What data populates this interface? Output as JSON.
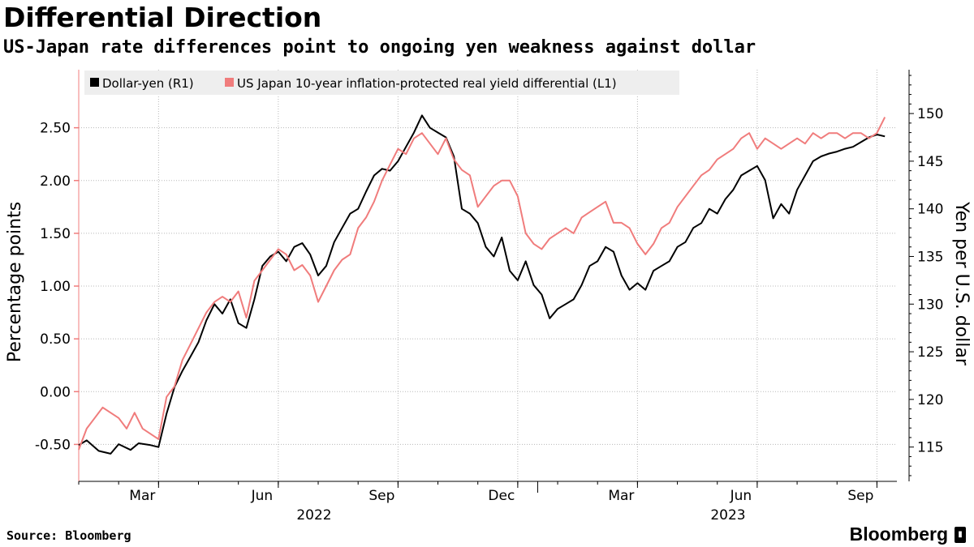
{
  "header": {
    "title": "Differential Direction",
    "subtitle": "US-Japan rate differences point to ongoing yen weakness against dollar"
  },
  "footer": {
    "source": "Source: Bloomberg",
    "brand": "Bloomberg",
    "brand_icon": "bloomberg-terminal-icon"
  },
  "colors": {
    "dollar_yen": "#000000",
    "real_yield": "#f07c7c",
    "legend_bg": "#eeeeee",
    "grid": "#b8b8b8"
  },
  "chart_data": {
    "type": "line",
    "x_tick_labels": [
      "Mar",
      "Jun",
      "Sep",
      "Dec",
      "Mar",
      "Jun",
      "Sep"
    ],
    "x_tick_months": [
      2,
      5,
      8,
      11,
      14,
      17,
      20
    ],
    "x_year_labels": [
      "2022",
      "2023"
    ],
    "x_range_months": [
      0,
      20.5
    ],
    "y_left": {
      "label": "Percentage points",
      "ticks": [
        "-0.50",
        "0.00",
        "0.50",
        "1.00",
        "1.50",
        "2.00",
        "2.50"
      ],
      "range": [
        -0.85,
        3.05
      ]
    },
    "y_right": {
      "label": "Yen per U.S. dollar",
      "ticks": [
        "115",
        "120",
        "125",
        "130",
        "135",
        "140",
        "145",
        "150"
      ],
      "range": [
        111.4,
        154.6
      ]
    },
    "series": [
      {
        "name": "Dollar-yen (R1)",
        "axis": "right",
        "color": "#000000",
        "points": [
          [
            0.0,
            115.2
          ],
          [
            0.2,
            115.7
          ],
          [
            0.5,
            114.6
          ],
          [
            0.8,
            114.3
          ],
          [
            1.0,
            115.3
          ],
          [
            1.3,
            114.7
          ],
          [
            1.5,
            115.4
          ],
          [
            1.8,
            115.2
          ],
          [
            2.0,
            115.0
          ],
          [
            2.2,
            118.5
          ],
          [
            2.4,
            121.3
          ],
          [
            2.6,
            123.0
          ],
          [
            2.8,
            124.5
          ],
          [
            3.0,
            126.0
          ],
          [
            3.2,
            128.3
          ],
          [
            3.4,
            130.0
          ],
          [
            3.6,
            129.0
          ],
          [
            3.8,
            130.5
          ],
          [
            4.0,
            128.0
          ],
          [
            4.2,
            127.5
          ],
          [
            4.4,
            130.5
          ],
          [
            4.6,
            134.0
          ],
          [
            4.8,
            135.0
          ],
          [
            5.0,
            135.5
          ],
          [
            5.2,
            134.5
          ],
          [
            5.4,
            136.0
          ],
          [
            5.6,
            136.4
          ],
          [
            5.8,
            135.2
          ],
          [
            6.0,
            133.0
          ],
          [
            6.2,
            134.0
          ],
          [
            6.4,
            136.5
          ],
          [
            6.6,
            138.0
          ],
          [
            6.8,
            139.5
          ],
          [
            7.0,
            140.0
          ],
          [
            7.2,
            141.8
          ],
          [
            7.4,
            143.5
          ],
          [
            7.6,
            144.2
          ],
          [
            7.8,
            144.0
          ],
          [
            8.0,
            145.0
          ],
          [
            8.2,
            146.5
          ],
          [
            8.4,
            148.0
          ],
          [
            8.6,
            149.8
          ],
          [
            8.8,
            148.5
          ],
          [
            9.0,
            148.0
          ],
          [
            9.2,
            147.5
          ],
          [
            9.4,
            145.5
          ],
          [
            9.6,
            140.0
          ],
          [
            9.8,
            139.5
          ],
          [
            10.0,
            138.5
          ],
          [
            10.2,
            136.0
          ],
          [
            10.4,
            135.0
          ],
          [
            10.6,
            137.0
          ],
          [
            10.8,
            133.5
          ],
          [
            11.0,
            132.5
          ],
          [
            11.2,
            134.5
          ],
          [
            11.4,
            132.0
          ],
          [
            11.6,
            131.0
          ],
          [
            11.8,
            128.5
          ],
          [
            12.0,
            129.5
          ],
          [
            12.2,
            130.0
          ],
          [
            12.4,
            130.5
          ],
          [
            12.6,
            132.0
          ],
          [
            12.8,
            134.0
          ],
          [
            13.0,
            134.5
          ],
          [
            13.2,
            136.0
          ],
          [
            13.4,
            135.5
          ],
          [
            13.6,
            133.0
          ],
          [
            13.8,
            131.5
          ],
          [
            14.0,
            132.2
          ],
          [
            14.2,
            131.5
          ],
          [
            14.4,
            133.5
          ],
          [
            14.6,
            134.0
          ],
          [
            14.8,
            134.5
          ],
          [
            15.0,
            136.0
          ],
          [
            15.2,
            136.5
          ],
          [
            15.4,
            138.0
          ],
          [
            15.6,
            138.5
          ],
          [
            15.8,
            140.0
          ],
          [
            16.0,
            139.5
          ],
          [
            16.2,
            141.0
          ],
          [
            16.4,
            142.0
          ],
          [
            16.6,
            143.5
          ],
          [
            16.8,
            144.0
          ],
          [
            17.0,
            144.5
          ],
          [
            17.2,
            143.0
          ],
          [
            17.4,
            139.0
          ],
          [
            17.6,
            140.5
          ],
          [
            17.8,
            139.5
          ],
          [
            18.0,
            142.0
          ],
          [
            18.2,
            143.5
          ],
          [
            18.4,
            145.0
          ],
          [
            18.6,
            145.5
          ],
          [
            18.8,
            145.8
          ],
          [
            19.0,
            146.0
          ],
          [
            19.2,
            146.3
          ],
          [
            19.4,
            146.5
          ],
          [
            19.6,
            147.0
          ],
          [
            19.8,
            147.5
          ],
          [
            20.0,
            147.8
          ],
          [
            20.2,
            147.6
          ]
        ]
      },
      {
        "name": "US Japan 10-year inflation-protected real yield differential (L1)",
        "axis": "left",
        "color": "#f07c7c",
        "points": [
          [
            0.0,
            -0.55
          ],
          [
            0.2,
            -0.35
          ],
          [
            0.4,
            -0.25
          ],
          [
            0.6,
            -0.15
          ],
          [
            0.8,
            -0.2
          ],
          [
            1.0,
            -0.25
          ],
          [
            1.2,
            -0.35
          ],
          [
            1.4,
            -0.2
          ],
          [
            1.6,
            -0.35
          ],
          [
            1.8,
            -0.4
          ],
          [
            2.0,
            -0.45
          ],
          [
            2.2,
            -0.05
          ],
          [
            2.4,
            0.05
          ],
          [
            2.6,
            0.3
          ],
          [
            2.8,
            0.45
          ],
          [
            3.0,
            0.6
          ],
          [
            3.2,
            0.75
          ],
          [
            3.4,
            0.85
          ],
          [
            3.6,
            0.9
          ],
          [
            3.8,
            0.85
          ],
          [
            4.0,
            0.95
          ],
          [
            4.2,
            0.7
          ],
          [
            4.4,
            1.05
          ],
          [
            4.6,
            1.15
          ],
          [
            4.8,
            1.25
          ],
          [
            5.0,
            1.35
          ],
          [
            5.2,
            1.3
          ],
          [
            5.4,
            1.15
          ],
          [
            5.6,
            1.2
          ],
          [
            5.8,
            1.1
          ],
          [
            6.0,
            0.85
          ],
          [
            6.2,
            1.0
          ],
          [
            6.4,
            1.15
          ],
          [
            6.6,
            1.25
          ],
          [
            6.8,
            1.3
          ],
          [
            7.0,
            1.55
          ],
          [
            7.2,
            1.65
          ],
          [
            7.4,
            1.8
          ],
          [
            7.6,
            2.0
          ],
          [
            7.8,
            2.15
          ],
          [
            8.0,
            2.3
          ],
          [
            8.2,
            2.25
          ],
          [
            8.4,
            2.4
          ],
          [
            8.6,
            2.45
          ],
          [
            8.8,
            2.35
          ],
          [
            9.0,
            2.25
          ],
          [
            9.2,
            2.4
          ],
          [
            9.4,
            2.2
          ],
          [
            9.6,
            2.1
          ],
          [
            9.8,
            2.05
          ],
          [
            10.0,
            1.75
          ],
          [
            10.2,
            1.85
          ],
          [
            10.4,
            1.95
          ],
          [
            10.6,
            2.0
          ],
          [
            10.8,
            2.0
          ],
          [
            11.0,
            1.85
          ],
          [
            11.2,
            1.5
          ],
          [
            11.4,
            1.4
          ],
          [
            11.6,
            1.35
          ],
          [
            11.8,
            1.45
          ],
          [
            12.0,
            1.5
          ],
          [
            12.2,
            1.55
          ],
          [
            12.4,
            1.5
          ],
          [
            12.6,
            1.65
          ],
          [
            12.8,
            1.7
          ],
          [
            13.0,
            1.75
          ],
          [
            13.2,
            1.8
          ],
          [
            13.4,
            1.6
          ],
          [
            13.6,
            1.6
          ],
          [
            13.8,
            1.55
          ],
          [
            14.0,
            1.4
          ],
          [
            14.2,
            1.3
          ],
          [
            14.4,
            1.4
          ],
          [
            14.6,
            1.55
          ],
          [
            14.8,
            1.6
          ],
          [
            15.0,
            1.75
          ],
          [
            15.2,
            1.85
          ],
          [
            15.4,
            1.95
          ],
          [
            15.6,
            2.05
          ],
          [
            15.8,
            2.1
          ],
          [
            16.0,
            2.2
          ],
          [
            16.2,
            2.25
          ],
          [
            16.4,
            2.3
          ],
          [
            16.6,
            2.4
          ],
          [
            16.8,
            2.45
          ],
          [
            17.0,
            2.3
          ],
          [
            17.2,
            2.4
          ],
          [
            17.4,
            2.35
          ],
          [
            17.6,
            2.3
          ],
          [
            17.8,
            2.35
          ],
          [
            18.0,
            2.4
          ],
          [
            18.2,
            2.35
          ],
          [
            18.4,
            2.45
          ],
          [
            18.6,
            2.4
          ],
          [
            18.8,
            2.45
          ],
          [
            19.0,
            2.45
          ],
          [
            19.2,
            2.4
          ],
          [
            19.4,
            2.45
          ],
          [
            19.6,
            2.45
          ],
          [
            19.8,
            2.4
          ],
          [
            20.0,
            2.45
          ],
          [
            20.2,
            2.6
          ]
        ]
      }
    ]
  }
}
